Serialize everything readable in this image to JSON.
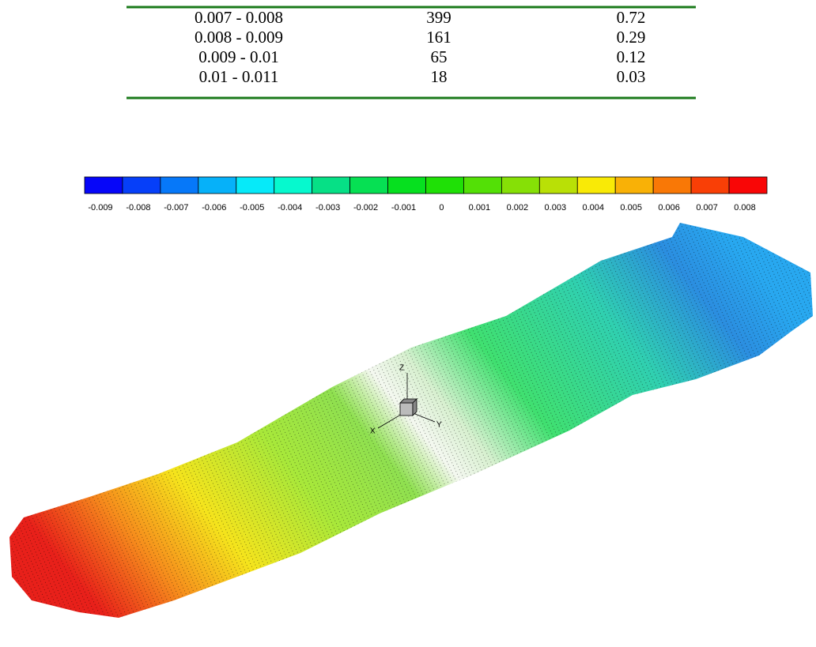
{
  "table": {
    "rows": [
      [
        "0.007 - 0.008",
        "399",
        "0.72"
      ],
      [
        "0.008 - 0.009",
        "161",
        "0.29"
      ],
      [
        "0.009 - 0.01",
        "65",
        "0.12"
      ],
      [
        "0.01 - 0.011",
        "18",
        "0.03"
      ]
    ]
  },
  "colorbar": {
    "labels": [
      "-0.009",
      "-0.008",
      "-0.007",
      "-0.006",
      "-0.005",
      "-0.004",
      "-0.003",
      "-0.002",
      "-0.001",
      "0",
      "0.001",
      "0.002",
      "0.003",
      "0.004",
      "0.005",
      "0.006",
      "0.007",
      "0.008"
    ]
  },
  "figure": {
    "axes": {
      "z": "Z",
      "x": "X",
      "y": "Y"
    }
  }
}
